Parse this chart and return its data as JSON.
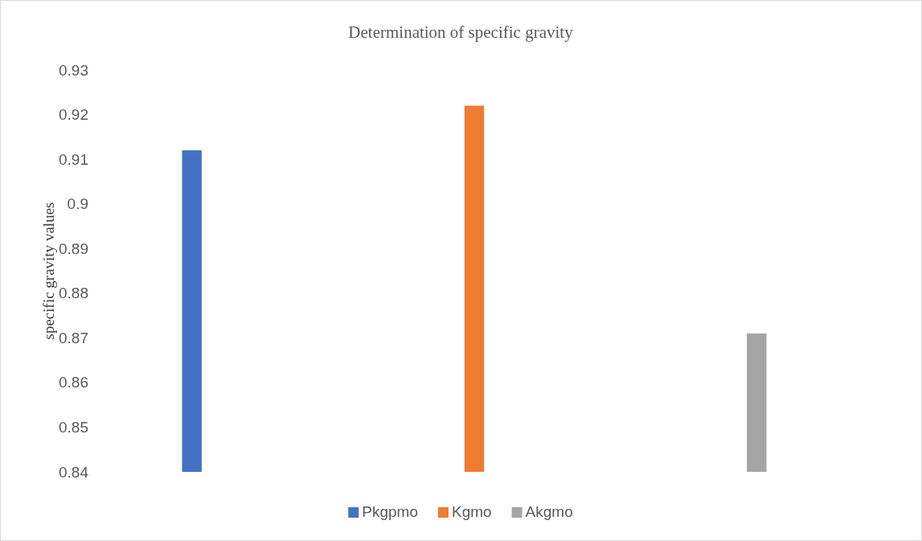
{
  "chart_data": {
    "type": "bar",
    "title": "Determination of specific gravity",
    "ylabel": "specific gravity values",
    "categories": [
      null,
      null,
      null
    ],
    "stacked": true,
    "series": [
      {
        "name": "Pkgpmo",
        "color": "#4472c4",
        "values": [
          0.912,
          null,
          null
        ]
      },
      {
        "name": "Kgmo",
        "color": "#ed7d31",
        "values": [
          null,
          0.922,
          null
        ]
      },
      {
        "name": "Akgmo",
        "color": "#a5a5a5",
        "values": [
          null,
          null,
          0.871
        ]
      }
    ],
    "ylim": [
      0.84,
      0.93
    ],
    "yticks": [
      0.84,
      0.85,
      0.86,
      0.87,
      0.88,
      0.89,
      0.9,
      0.91,
      0.92,
      0.93
    ],
    "grid": false,
    "legend": "bottom"
  }
}
